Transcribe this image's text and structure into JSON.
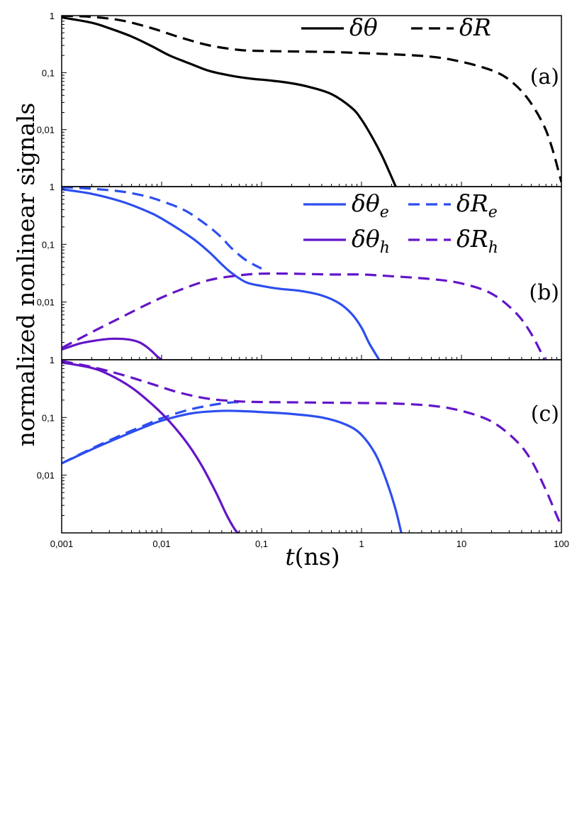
{
  "chart_data": [
    {
      "type": "line",
      "panel_label": "(a)",
      "xscale": "log",
      "yscale": "log",
      "xlim": [
        0.001,
        100
      ],
      "ylim": [
        0.001,
        1
      ],
      "ytick_labels": [
        "1",
        "0,1",
        "0,01"
      ],
      "legend": "top-right",
      "series": [
        {
          "name": "δθ",
          "name_base": "δθ",
          "name_sub": "",
          "color": "#000000",
          "style": "solid",
          "x": [
            0.001,
            0.002,
            0.003,
            0.005,
            0.008,
            0.012,
            0.02,
            0.03,
            0.05,
            0.08,
            0.12,
            0.2,
            0.3,
            0.5,
            0.8,
            1.0,
            1.3,
            1.6,
            1.9,
            2.2
          ],
          "y": [
            0.93,
            0.75,
            0.6,
            0.43,
            0.29,
            0.2,
            0.14,
            0.107,
            0.088,
            0.078,
            0.073,
            0.065,
            0.056,
            0.042,
            0.024,
            0.015,
            0.007,
            0.0035,
            0.0018,
            0.001
          ]
        },
        {
          "name": "δR",
          "name_base": "δR",
          "name_sub": "",
          "color": "#000000",
          "style": "dashed",
          "x": [
            0.001,
            0.002,
            0.004,
            0.008,
            0.015,
            0.03,
            0.06,
            0.1,
            0.2,
            0.5,
            1,
            2,
            5,
            10,
            20,
            30,
            45,
            65,
            80,
            100
          ],
          "y": [
            1.0,
            0.95,
            0.82,
            0.6,
            0.42,
            0.3,
            0.25,
            0.24,
            0.235,
            0.23,
            0.22,
            0.21,
            0.19,
            0.155,
            0.11,
            0.075,
            0.037,
            0.013,
            0.005,
            0.0012
          ]
        }
      ]
    },
    {
      "type": "line",
      "panel_label": "(b)",
      "xscale": "log",
      "yscale": "log",
      "xlim": [
        0.001,
        100
      ],
      "ylim": [
        0.001,
        1
      ],
      "ytick_labels": [
        "1",
        "0,1",
        "0,01"
      ],
      "legend": "top-right",
      "series": [
        {
          "name": "δθe",
          "name_base": "δθ",
          "name_sub": "e",
          "color": "#2d4ef0",
          "style": "solid",
          "x": [
            0.001,
            0.002,
            0.004,
            0.007,
            0.01,
            0.02,
            0.03,
            0.04,
            0.05,
            0.07,
            0.1,
            0.15,
            0.25,
            0.4,
            0.6,
            0.8,
            1.0,
            1.2,
            1.5
          ],
          "y": [
            0.9,
            0.75,
            0.55,
            0.38,
            0.28,
            0.13,
            0.073,
            0.045,
            0.032,
            0.022,
            0.019,
            0.017,
            0.0155,
            0.013,
            0.0095,
            0.0062,
            0.0036,
            0.0019,
            0.001
          ]
        },
        {
          "name": "δRe",
          "name_base": "δR",
          "name_sub": "e",
          "color": "#2d4ef0",
          "style": "dashed",
          "x": [
            0.001,
            0.002,
            0.004,
            0.007,
            0.01,
            0.015,
            0.02,
            0.03,
            0.04,
            0.05,
            0.07,
            0.1
          ],
          "y": [
            0.98,
            0.92,
            0.82,
            0.68,
            0.56,
            0.43,
            0.33,
            0.2,
            0.13,
            0.086,
            0.053,
            0.038
          ]
        },
        {
          "name": "δθh",
          "name_base": "δθ",
          "name_sub": "h",
          "color": "#6315c9",
          "style": "solid",
          "x": [
            0.001,
            0.0015,
            0.002,
            0.003,
            0.004,
            0.005,
            0.006,
            0.007,
            0.008,
            0.009,
            0.01
          ],
          "y": [
            0.0015,
            0.0019,
            0.0021,
            0.0023,
            0.0023,
            0.0022,
            0.002,
            0.0017,
            0.0014,
            0.00115,
            0.001
          ]
        },
        {
          "name": "δRh",
          "name_base": "δR",
          "name_sub": "h",
          "color": "#6315c9",
          "style": "dashed",
          "x": [
            0.001,
            0.002,
            0.004,
            0.008,
            0.015,
            0.03,
            0.06,
            0.1,
            0.2,
            0.5,
            1,
            2,
            5,
            10,
            20,
            35,
            50,
            70
          ],
          "y": [
            0.0016,
            0.003,
            0.0055,
            0.01,
            0.016,
            0.024,
            0.029,
            0.031,
            0.031,
            0.03,
            0.03,
            0.028,
            0.025,
            0.021,
            0.014,
            0.0065,
            0.0028,
            0.0009
          ]
        }
      ]
    },
    {
      "type": "line",
      "panel_label": "(c)",
      "xscale": "log",
      "yscale": "log",
      "xlim": [
        0.001,
        100
      ],
      "ylim": [
        0.001,
        1
      ],
      "xlabel_base": "t",
      "xlabel_unit": "(ns)",
      "xtick_labels": [
        "0,001",
        "0,01",
        "0,1",
        "1",
        "10",
        "100"
      ],
      "ytick_labels": [
        "1",
        "0,1",
        "0,01"
      ],
      "series": [
        {
          "name": "δθe",
          "color": "#2d4ef0",
          "style": "solid",
          "x": [
            0.001,
            0.002,
            0.004,
            0.007,
            0.01,
            0.02,
            0.04,
            0.07,
            0.1,
            0.2,
            0.4,
            0.7,
            1.0,
            1.4,
            1.8,
            2.2,
            2.5
          ],
          "y": [
            0.016,
            0.028,
            0.047,
            0.07,
            0.088,
            0.118,
            0.13,
            0.128,
            0.124,
            0.115,
            0.1,
            0.075,
            0.05,
            0.022,
            0.0075,
            0.0025,
            0.001
          ]
        },
        {
          "name": "δRe",
          "color": "#2d4ef0",
          "style": "dashed",
          "x": [
            0.001,
            0.002,
            0.004,
            0.007,
            0.01,
            0.02,
            0.04,
            0.06
          ],
          "y": [
            0.016,
            0.029,
            0.05,
            0.075,
            0.097,
            0.14,
            0.175,
            0.185
          ]
        },
        {
          "name": "δθh",
          "color": "#6315c9",
          "style": "solid",
          "x": [
            0.001,
            0.002,
            0.003,
            0.005,
            0.008,
            0.012,
            0.018,
            0.025,
            0.035,
            0.045,
            0.055,
            0.06
          ],
          "y": [
            0.9,
            0.72,
            0.55,
            0.33,
            0.17,
            0.085,
            0.036,
            0.015,
            0.005,
            0.002,
            0.0011,
            0.001
          ]
        },
        {
          "name": "δRh",
          "color": "#6315c9",
          "style": "dashed",
          "x": [
            0.001,
            0.002,
            0.004,
            0.008,
            0.015,
            0.03,
            0.06,
            0.1,
            0.2,
            0.5,
            1,
            2,
            5,
            10,
            20,
            35,
            50,
            70,
            85,
            100
          ],
          "y": [
            0.95,
            0.75,
            0.55,
            0.38,
            0.27,
            0.21,
            0.19,
            0.185,
            0.183,
            0.18,
            0.178,
            0.175,
            0.16,
            0.13,
            0.085,
            0.04,
            0.018,
            0.0055,
            0.0025,
            0.0013
          ]
        }
      ]
    }
  ],
  "y_title": "normalized nonlinear signals"
}
